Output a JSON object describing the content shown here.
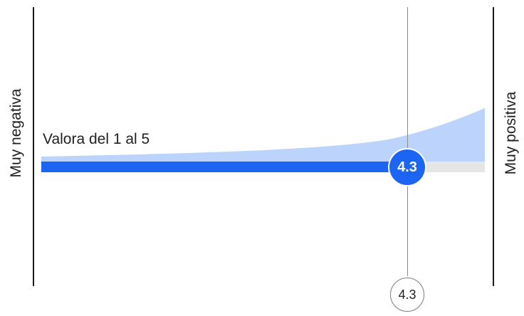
{
  "scale": {
    "left_label": "Muy negativa",
    "right_label": "Muy positiva",
    "prompt": "Valora del 1 al 5",
    "min": 1,
    "max": 5,
    "value": 4.3,
    "value_label": "4.3",
    "readout_label": "4.3"
  },
  "colors": {
    "accent": "#1c64f2",
    "distribution_fill": "#bcd3fb",
    "track_empty": "#e6e6e6",
    "guide_line": "#8a8a8a"
  }
}
